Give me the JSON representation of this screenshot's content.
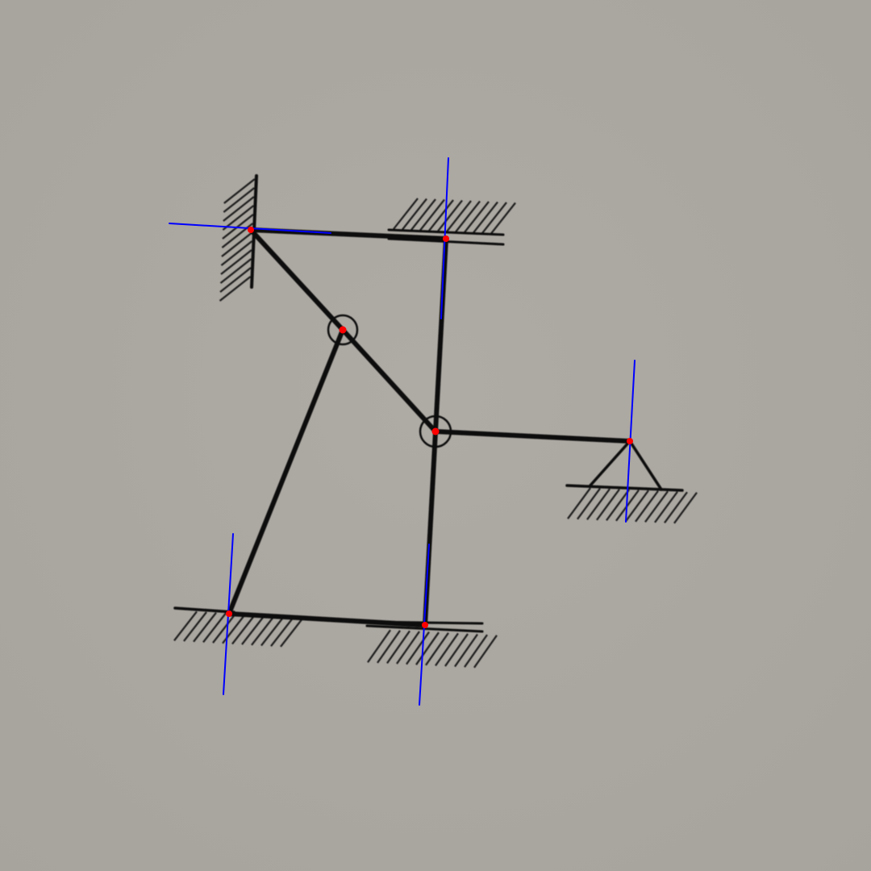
{
  "colors": {
    "background": "#aba7a1",
    "member": "#111111",
    "hatch": "#1c1c1c",
    "axis": "#0000ff",
    "point": "#ff0000"
  },
  "diagram": {
    "kind": "planar-frame-structure",
    "supports": [
      {
        "id": "wall-top-left",
        "type": "fixed-wall"
      },
      {
        "id": "ceiling-top",
        "type": "fixed-ceiling"
      },
      {
        "id": "pin-right",
        "type": "pin"
      },
      {
        "id": "ground-bottom-left",
        "type": "fixed-ground"
      },
      {
        "id": "ground-bottom-center",
        "type": "fixed-ground"
      }
    ],
    "hinges": [
      {
        "id": "hinge-upper"
      },
      {
        "id": "hinge-center"
      }
    ],
    "members": [
      {
        "id": "beam-top",
        "from": "wall-top-left",
        "to": "ceiling-top"
      },
      {
        "id": "diagonal-upper",
        "from": "wall-top-left",
        "to": "hinge-upper"
      },
      {
        "id": "diagonal-lower",
        "from": "hinge-upper",
        "to": "hinge-center"
      },
      {
        "id": "column-upper",
        "from": "ceiling-top",
        "to": "hinge-center"
      },
      {
        "id": "beam-right",
        "from": "hinge-center",
        "to": "pin-right"
      },
      {
        "id": "column-lower",
        "from": "hinge-center",
        "to": "ground-bottom-center"
      },
      {
        "id": "strut-left",
        "from": "hinge-upper",
        "to": "ground-bottom-left"
      },
      {
        "id": "beam-bottom",
        "from": "ground-bottom-left",
        "to": "ground-bottom-center"
      }
    ]
  }
}
